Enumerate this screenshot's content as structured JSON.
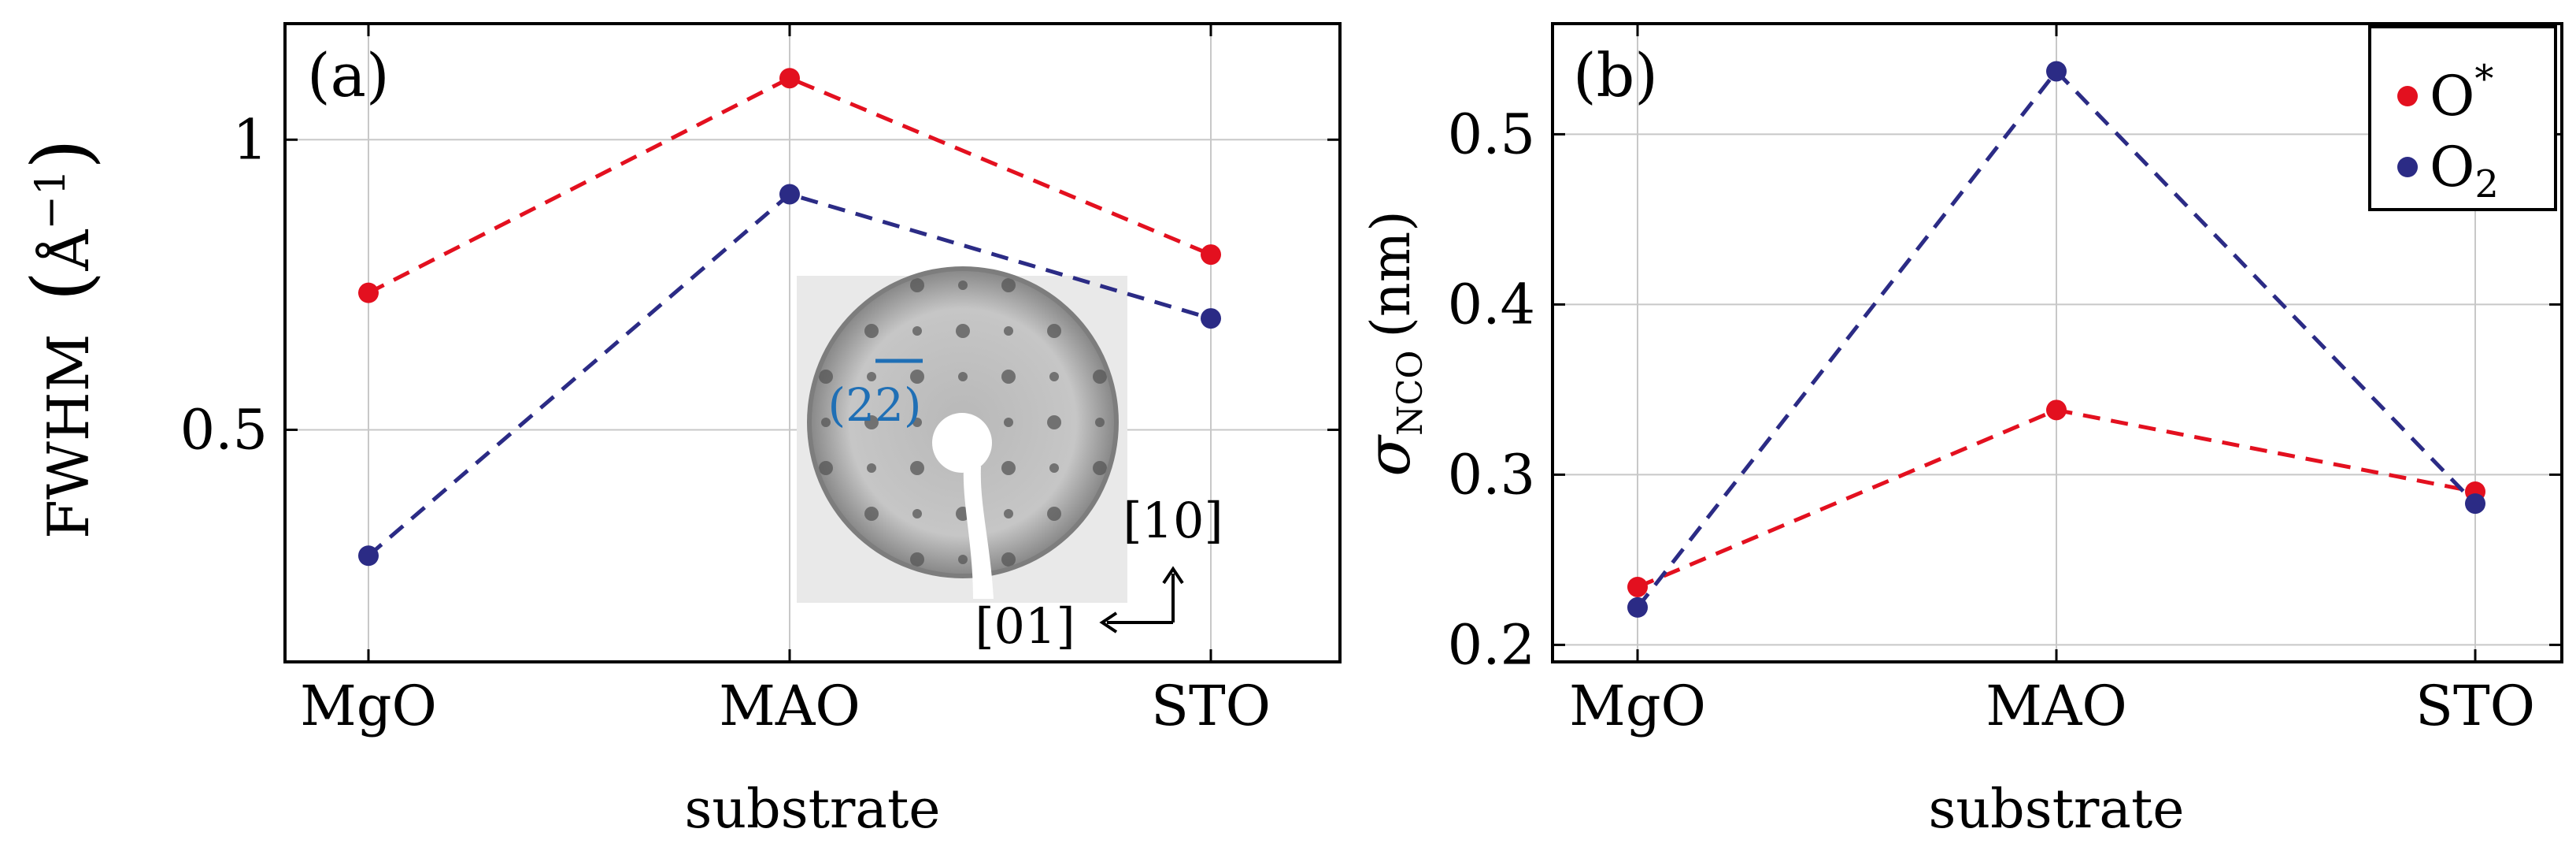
{
  "colors": {
    "o_star": "#e3101f",
    "o2": "#2b2b85",
    "inset_label": "#1f6fb5"
  },
  "chart_data": [
    {
      "panel_label": "(a)",
      "type": "line",
      "categories": [
        "MgO",
        "MAO",
        "STO"
      ],
      "series": [
        {
          "name": "O*",
          "values": [
            0.736,
            1.106,
            0.802
          ]
        },
        {
          "name": "O2",
          "values": [
            0.283,
            0.906,
            0.692
          ]
        }
      ],
      "yticks": [
        {
          "value": 0.5,
          "label": "0.5"
        },
        {
          "value": 1.0,
          "label": "1"
        }
      ],
      "ylim": [
        0.1,
        1.2
      ],
      "xlabel": "substrate",
      "ylabel": "FWHM (Å⁻¹)",
      "ylabel_main": "FWHM",
      "ylabel_unit": "Å",
      "ylabel_exp": "−1",
      "grid": true,
      "inset": {
        "spot_label": "(22)",
        "direction_up": "[10]",
        "direction_left": "[01]"
      }
    },
    {
      "panel_label": "(b)",
      "type": "line",
      "categories": [
        "MgO",
        "MAO",
        "STO"
      ],
      "series": [
        {
          "name": "O*",
          "values": [
            0.234,
            0.338,
            0.29
          ]
        },
        {
          "name": "O2",
          "values": [
            0.222,
            0.537,
            0.283
          ]
        }
      ],
      "yticks": [
        {
          "value": 0.2,
          "label": "0.2"
        },
        {
          "value": 0.3,
          "label": "0.3"
        },
        {
          "value": 0.4,
          "label": "0.4"
        },
        {
          "value": 0.5,
          "label": "0.5"
        }
      ],
      "ylim": [
        0.19,
        0.565
      ],
      "xlabel": "substrate",
      "ylabel": "σNCO (nm)",
      "ylabel_main": "σ",
      "ylabel_sub": "NCO",
      "ylabel_unit": "(nm)",
      "grid": true,
      "legend": {
        "placement": "top-right",
        "entries": [
          {
            "main": "O",
            "sup": "*",
            "sub": ""
          },
          {
            "main": "O",
            "sup": "",
            "sub": "2"
          }
        ]
      }
    }
  ]
}
